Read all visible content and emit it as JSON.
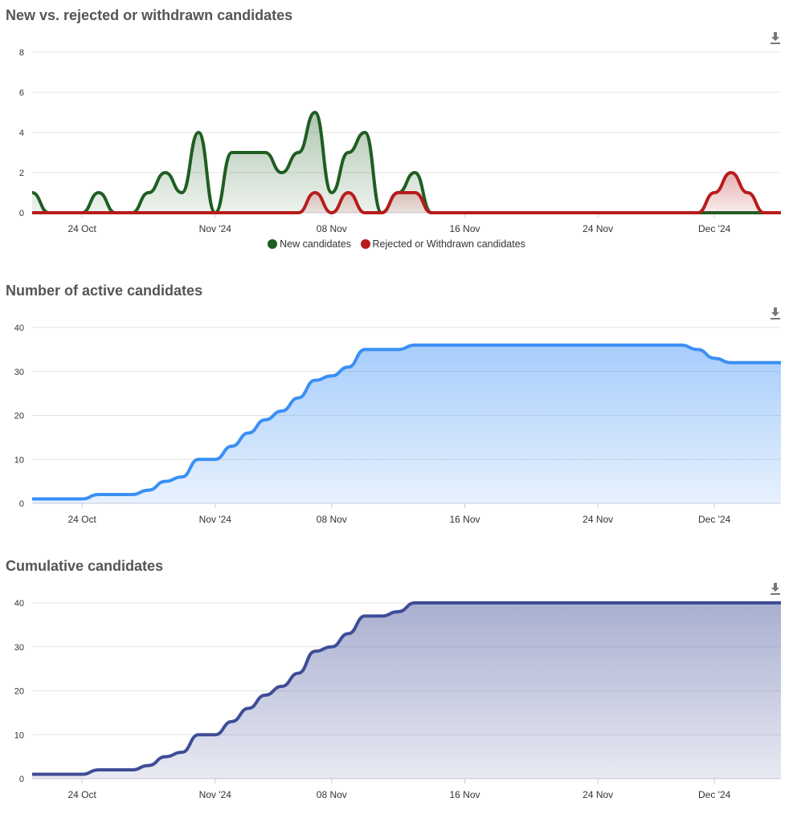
{
  "charts": [
    {
      "title": "New vs. rejected or withdrawn candidates",
      "download_icon": "download-icon",
      "chart_data": {
        "type": "area",
        "x_start": "2024-10-21",
        "x_end": "2024-12-05",
        "xticks": [
          {
            "date": "2024-10-24",
            "label": "24 Oct"
          },
          {
            "date": "2024-11-01",
            "label": "Nov '24"
          },
          {
            "date": "2024-11-08",
            "label": "08 Nov"
          },
          {
            "date": "2024-11-16",
            "label": "16 Nov"
          },
          {
            "date": "2024-11-24",
            "label": "24 Nov"
          },
          {
            "date": "2024-12-01",
            "label": "Dec '24"
          }
        ],
        "yticks": [
          "0",
          "2",
          "4",
          "6",
          "8"
        ],
        "ylim": [
          0,
          8
        ],
        "grid": true,
        "legend": "bottom",
        "series": [
          {
            "name": "New candidates",
            "color": "#1f5e22",
            "values": [
              1,
              0,
              0,
              0,
              1,
              0,
              0,
              1,
              2,
              1,
              4,
              0,
              3,
              3,
              3,
              2,
              3,
              5,
              1,
              3,
              4,
              0,
              1,
              2,
              0,
              0,
              0,
              0,
              0,
              0,
              0,
              0,
              0,
              0,
              0,
              0,
              0,
              0,
              0,
              0,
              0,
              0,
              0,
              0,
              0,
              0
            ]
          },
          {
            "name": "Rejected or Withdrawn candidates",
            "color": "#b71c1c",
            "values": [
              0,
              0,
              0,
              0,
              0,
              0,
              0,
              0,
              0,
              0,
              0,
              0,
              0,
              0,
              0,
              0,
              0,
              1,
              0,
              1,
              0,
              0,
              1,
              1,
              0,
              0,
              0,
              0,
              0,
              0,
              0,
              0,
              0,
              0,
              0,
              0,
              0,
              0,
              0,
              0,
              0,
              1,
              2,
              1,
              0,
              0
            ]
          }
        ]
      }
    },
    {
      "title": "Number of active candidates",
      "download_icon": "download-icon",
      "chart_data": {
        "type": "area",
        "x_start": "2024-10-21",
        "x_end": "2024-12-05",
        "xticks": [
          {
            "date": "2024-10-24",
            "label": "24 Oct"
          },
          {
            "date": "2024-11-01",
            "label": "Nov '24"
          },
          {
            "date": "2024-11-08",
            "label": "08 Nov"
          },
          {
            "date": "2024-11-16",
            "label": "16 Nov"
          },
          {
            "date": "2024-11-24",
            "label": "24 Nov"
          },
          {
            "date": "2024-12-01",
            "label": "Dec '24"
          }
        ],
        "yticks": [
          "0",
          "10",
          "20",
          "30",
          "40"
        ],
        "ylim": [
          0,
          40
        ],
        "grid": true,
        "series": [
          {
            "color": "#3a8ff5",
            "values": [
              1,
              1,
              1,
              1,
              2,
              2,
              2,
              3,
              5,
              6,
              10,
              10,
              13,
              16,
              19,
              21,
              24,
              28,
              29,
              31,
              35,
              35,
              35,
              36,
              36,
              36,
              36,
              36,
              36,
              36,
              36,
              36,
              36,
              36,
              36,
              36,
              36,
              36,
              36,
              36,
              35,
              33,
              32,
              32,
              32,
              32
            ]
          }
        ]
      }
    },
    {
      "title": "Cumulative candidates",
      "download_icon": "download-icon",
      "chart_data": {
        "type": "area",
        "x_start": "2024-10-21",
        "x_end": "2024-12-05",
        "xticks": [
          {
            "date": "2024-10-24",
            "label": "24 Oct"
          },
          {
            "date": "2024-11-01",
            "label": "Nov '24"
          },
          {
            "date": "2024-11-08",
            "label": "08 Nov"
          },
          {
            "date": "2024-11-16",
            "label": "16 Nov"
          },
          {
            "date": "2024-11-24",
            "label": "24 Nov"
          },
          {
            "date": "2024-12-01",
            "label": "Dec '24"
          }
        ],
        "yticks": [
          "0",
          "10",
          "20",
          "30",
          "40"
        ],
        "ylim": [
          0,
          40
        ],
        "grid": true,
        "series": [
          {
            "color": "#3f4c96",
            "values": [
              1,
              1,
              1,
              1,
              2,
              2,
              2,
              3,
              5,
              6,
              10,
              10,
              13,
              16,
              19,
              21,
              24,
              29,
              30,
              33,
              37,
              37,
              38,
              40,
              40,
              40,
              40,
              40,
              40,
              40,
              40,
              40,
              40,
              40,
              40,
              40,
              40,
              40,
              40,
              40,
              40,
              40,
              40,
              40,
              40,
              40
            ]
          }
        ]
      }
    }
  ]
}
